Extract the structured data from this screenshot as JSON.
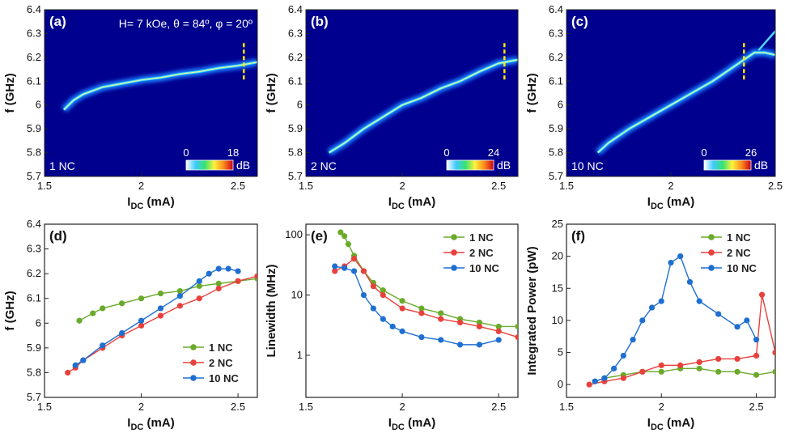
{
  "chart_data": [
    {
      "panel_label": "(a)",
      "type": "heatmap",
      "annotation": "H= 7 kOe, θ = 84º, φ = 20º",
      "sample_label": "1 NC",
      "xlabel": "I_DC (mA)",
      "ylabel": "f (GHz)",
      "xlim": [
        1.5,
        2.6
      ],
      "ylim": [
        5.7,
        6.4
      ],
      "xticks": [
        "1.5",
        "2",
        "2.5"
      ],
      "yticks": [
        "5.7",
        "5.8",
        "5.9",
        "6",
        "6.1",
        "6.2",
        "6.3",
        "6.4"
      ],
      "colorbar": {
        "min": "0",
        "max": "18",
        "unit": "dB"
      },
      "marker_x": 2.53,
      "ridge": {
        "x": [
          1.6,
          1.65,
          1.7,
          1.75,
          1.8,
          1.9,
          2.0,
          2.1,
          2.2,
          2.3,
          2.4,
          2.5,
          2.6
        ],
        "y": [
          5.98,
          6.02,
          6.045,
          6.06,
          6.075,
          6.09,
          6.105,
          6.115,
          6.13,
          6.14,
          6.155,
          6.165,
          6.18
        ]
      }
    },
    {
      "panel_label": "(b)",
      "type": "heatmap",
      "sample_label": "2 NC",
      "xlabel": "I_DC (mA)",
      "ylabel": "f (GHz)",
      "xlim": [
        1.5,
        2.6
      ],
      "ylim": [
        5.7,
        6.4
      ],
      "xticks": [
        "1.5",
        "2",
        "2.5"
      ],
      "yticks": [
        "5.7",
        "5.8",
        "5.9",
        "6",
        "6.1",
        "6.2",
        "6.3",
        "6.4"
      ],
      "colorbar": {
        "min": "0",
        "max": "24",
        "unit": "dB"
      },
      "marker_x": 2.53,
      "ridge": {
        "x": [
          1.62,
          1.7,
          1.8,
          1.9,
          2.0,
          2.1,
          2.2,
          2.3,
          2.4,
          2.5,
          2.6
        ],
        "y": [
          5.8,
          5.84,
          5.9,
          5.95,
          6.0,
          6.03,
          6.07,
          6.1,
          6.14,
          6.175,
          6.19
        ]
      }
    },
    {
      "panel_label": "(c)",
      "type": "heatmap",
      "sample_label": "10 NC",
      "xlabel": "I_DC (mA)",
      "ylabel": "f (GHz)",
      "xlim": [
        1.5,
        2.5
      ],
      "ylim": [
        5.7,
        6.4
      ],
      "xticks": [
        "1.5",
        "2",
        "2.5"
      ],
      "yticks": [
        "5.7",
        "5.8",
        "5.9",
        "6",
        "6.1",
        "6.2",
        "6.3",
        "6.4"
      ],
      "colorbar": {
        "min": "0",
        "max": "26",
        "unit": "dB"
      },
      "marker_x": 2.35,
      "ridge": {
        "x": [
          1.65,
          1.7,
          1.8,
          1.9,
          2.0,
          2.1,
          2.2,
          2.3,
          2.35,
          2.4,
          2.45,
          2.5
        ],
        "y": [
          5.8,
          5.84,
          5.9,
          5.95,
          6.0,
          6.05,
          6.1,
          6.16,
          6.19,
          6.22,
          6.22,
          6.21
        ]
      },
      "branch": {
        "x": [
          2.42,
          2.45,
          2.48,
          2.5
        ],
        "y": [
          6.23,
          6.26,
          6.29,
          6.31
        ]
      }
    },
    {
      "panel_label": "(d)",
      "type": "scatter",
      "xlabel": "I_DC (mA)",
      "ylabel": "f (GHz)",
      "xlim": [
        1.5,
        2.6
      ],
      "ylim": [
        5.7,
        6.4
      ],
      "xticks": [
        "1.5",
        "2",
        "2.5"
      ],
      "yticks": [
        "5.7",
        "5.8",
        "5.9",
        "6",
        "6.1",
        "6.2",
        "6.3",
        "6.4"
      ],
      "legend_position": "lower-right",
      "series": [
        {
          "name": "1 NC",
          "color": "#6aaa2a",
          "x": [
            1.68,
            1.75,
            1.8,
            1.9,
            2.0,
            2.1,
            2.2,
            2.3,
            2.4,
            2.5,
            2.6
          ],
          "y": [
            6.01,
            6.04,
            6.06,
            6.08,
            6.1,
            6.12,
            6.13,
            6.15,
            6.16,
            6.17,
            6.18
          ]
        },
        {
          "name": "2 NC",
          "color": "#e8413c",
          "x": [
            1.62,
            1.66,
            1.7,
            1.8,
            1.9,
            2.0,
            2.1,
            2.2,
            2.3,
            2.4,
            2.5,
            2.6
          ],
          "y": [
            5.8,
            5.82,
            5.85,
            5.9,
            5.95,
            5.99,
            6.03,
            6.07,
            6.1,
            6.14,
            6.17,
            6.19
          ]
        },
        {
          "name": "10 NC",
          "color": "#1f6fd1",
          "x": [
            1.66,
            1.7,
            1.8,
            1.9,
            2.0,
            2.1,
            2.2,
            2.3,
            2.35,
            2.4,
            2.45,
            2.5
          ],
          "y": [
            5.83,
            5.85,
            5.91,
            5.96,
            6.01,
            6.06,
            6.11,
            6.17,
            6.2,
            6.22,
            6.22,
            6.21
          ]
        }
      ]
    },
    {
      "panel_label": "(e)",
      "type": "scatter",
      "xlabel": "I_DC (mA)",
      "ylabel": "Linewidth (MHz)",
      "yscale": "log",
      "xlim": [
        1.5,
        2.6
      ],
      "ylim": [
        0.2,
        150
      ],
      "xticks": [
        "1.5",
        "2",
        "2.5"
      ],
      "yticks": [
        "1",
        "10",
        "100"
      ],
      "legend_position": "top-right",
      "series": [
        {
          "name": "1 NC",
          "color": "#6aaa2a",
          "x": [
            1.68,
            1.7,
            1.72,
            1.75,
            1.8,
            1.85,
            1.9,
            2.0,
            2.1,
            2.2,
            2.3,
            2.4,
            2.5,
            2.6
          ],
          "y": [
            110,
            95,
            70,
            45,
            25,
            16,
            12,
            8,
            6,
            5,
            4,
            3.5,
            3,
            3
          ]
        },
        {
          "name": "2 NC",
          "color": "#e8413c",
          "x": [
            1.65,
            1.7,
            1.75,
            1.8,
            1.85,
            1.9,
            2.0,
            2.1,
            2.2,
            2.3,
            2.4,
            2.5,
            2.6
          ],
          "y": [
            25,
            30,
            40,
            25,
            14,
            10,
            6,
            5,
            4,
            3.5,
            3,
            2.5,
            2
          ]
        },
        {
          "name": "10 NC",
          "color": "#1f6fd1",
          "x": [
            1.65,
            1.7,
            1.75,
            1.8,
            1.85,
            1.9,
            1.95,
            2.0,
            2.1,
            2.2,
            2.3,
            2.4,
            2.5
          ],
          "y": [
            30,
            28,
            25,
            10,
            6,
            4,
            3,
            2.5,
            2,
            1.8,
            1.5,
            1.5,
            1.8
          ]
        }
      ]
    },
    {
      "panel_label": "(f)",
      "type": "scatter",
      "xlabel": "I_DC (mA)",
      "ylabel": "Integrated Power (pW)",
      "xlim": [
        1.5,
        2.6
      ],
      "ylim": [
        -2,
        25
      ],
      "xticks": [
        "1.5",
        "2",
        "2.5"
      ],
      "yticks": [
        "0",
        "5",
        "10",
        "15",
        "20",
        "25"
      ],
      "legend_position": "top-right",
      "series": [
        {
          "name": "1 NC",
          "color": "#6aaa2a",
          "x": [
            1.65,
            1.7,
            1.8,
            1.9,
            2.0,
            2.1,
            2.2,
            2.3,
            2.4,
            2.5,
            2.6
          ],
          "y": [
            0.5,
            1,
            1.5,
            2,
            2,
            2.5,
            2.5,
            2,
            2,
            1.5,
            2
          ]
        },
        {
          "name": "2 NC",
          "color": "#e8413c",
          "x": [
            1.62,
            1.7,
            1.8,
            1.9,
            2.0,
            2.1,
            2.2,
            2.3,
            2.4,
            2.5,
            2.53,
            2.6
          ],
          "y": [
            0,
            0.5,
            1,
            2,
            3,
            3,
            3.5,
            4,
            4,
            4.5,
            14,
            5
          ]
        },
        {
          "name": "10 NC",
          "color": "#1f6fd1",
          "x": [
            1.65,
            1.7,
            1.75,
            1.8,
            1.85,
            1.9,
            1.95,
            2.0,
            2.05,
            2.1,
            2.15,
            2.2,
            2.3,
            2.4,
            2.45,
            2.5
          ],
          "y": [
            0.5,
            1,
            2.5,
            4.5,
            7,
            10,
            12,
            13,
            19,
            20,
            16,
            13,
            11,
            9,
            10,
            7
          ]
        }
      ]
    }
  ]
}
